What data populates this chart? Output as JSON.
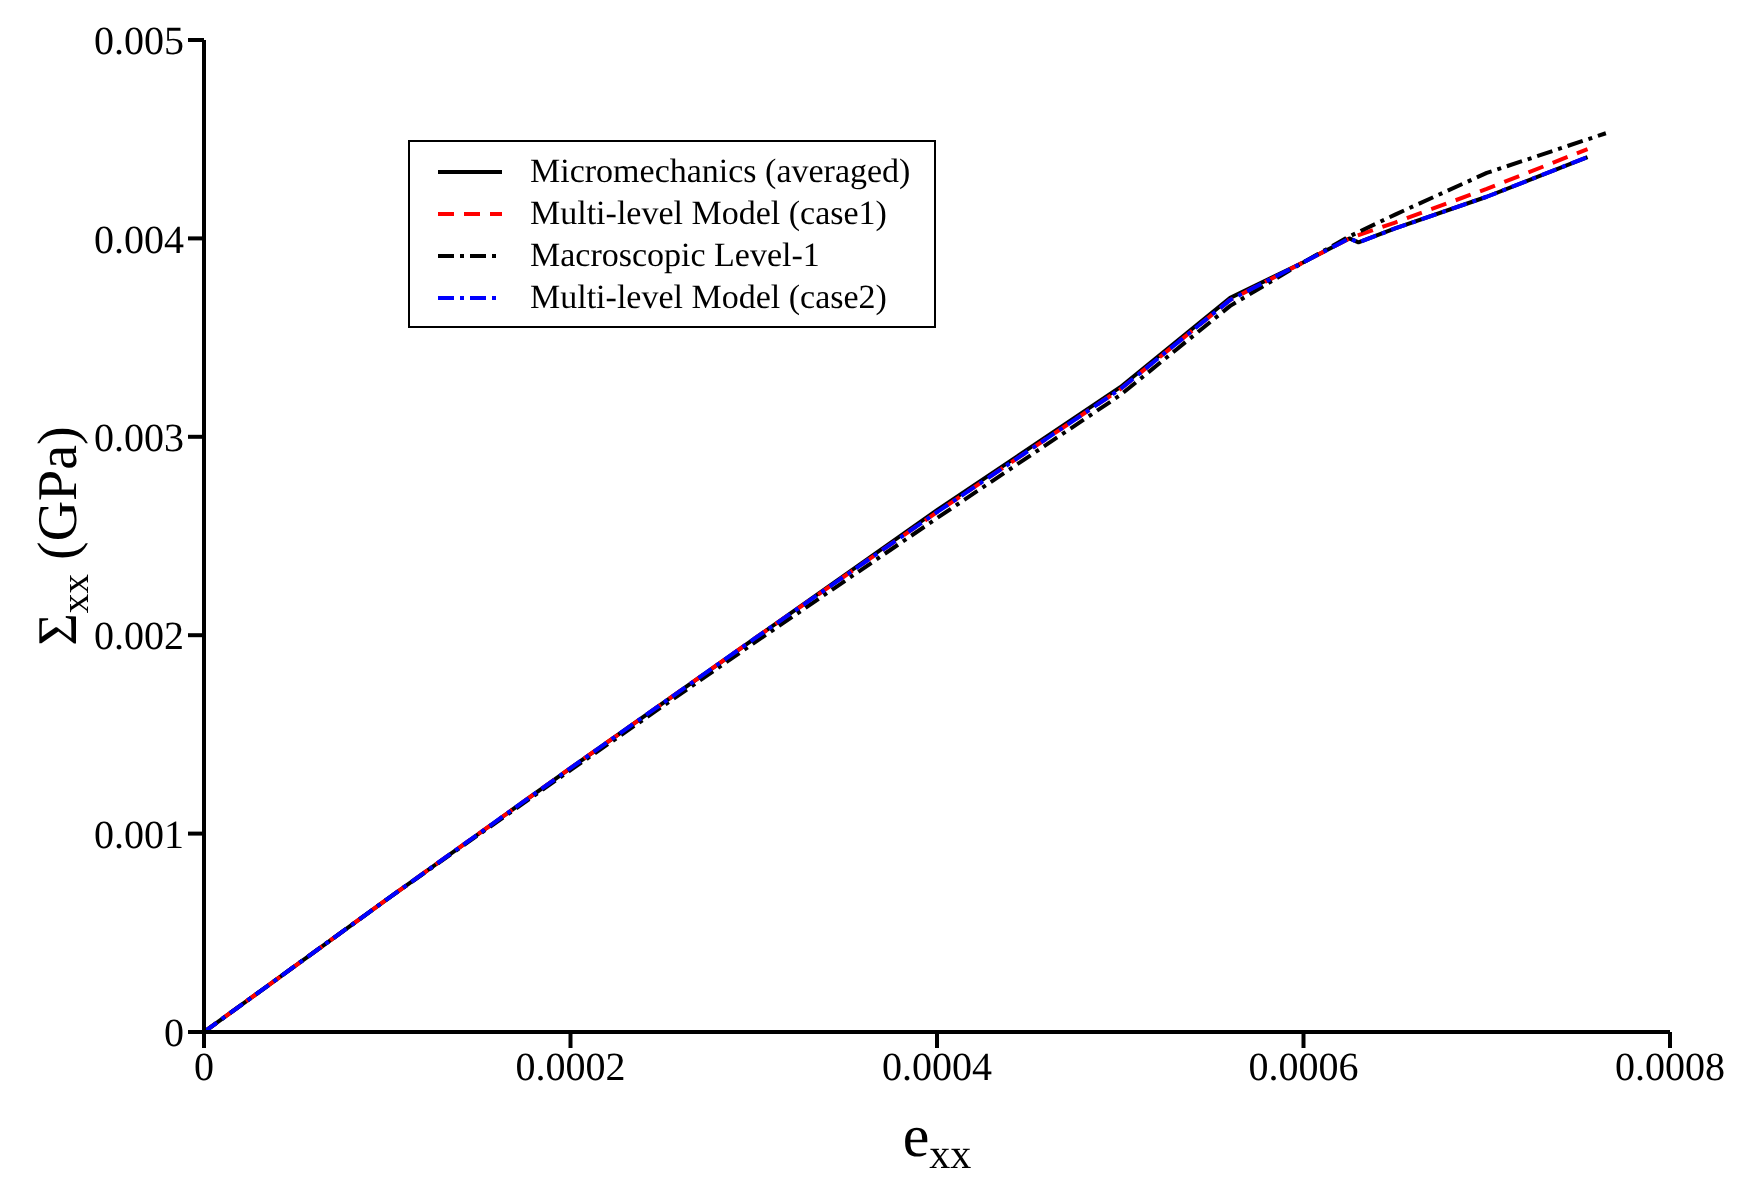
{
  "chart_data": {
    "type": "line",
    "xlabel": "e$_{xx}$",
    "ylabel": "Σ$_{xx}$  (GPa)",
    "xlim": [
      0,
      0.0008
    ],
    "ylim": [
      0,
      0.005
    ],
    "xticks": [
      0,
      0.0002,
      0.0004,
      0.0006,
      0.0008
    ],
    "yticks": [
      0,
      0.001,
      0.002,
      0.003,
      0.004,
      0.005
    ],
    "grid": false,
    "legend": "top left",
    "marker": "none",
    "series": [
      {
        "name": "Micromechanics (averaged)",
        "color": "#000000",
        "line_style": "solid",
        "x": [
          0,
          0.0001,
          0.0002,
          0.0003,
          0.0004,
          0.0005,
          0.00056,
          0.0006,
          0.000625,
          0.00063,
          0.00065,
          0.0007,
          0.000755
        ],
        "values": [
          0,
          0.00067,
          0.00133,
          0.00198,
          0.00263,
          0.00325,
          0.0037,
          0.00388,
          0.004,
          0.00398,
          0.00405,
          0.00421,
          0.00441
        ]
      },
      {
        "name": "Multi-level Model (case1)",
        "color": "#ff0000",
        "line_style": "dashed",
        "x": [
          0,
          0.0001,
          0.0002,
          0.0003,
          0.0004,
          0.0005,
          0.00056,
          0.0006,
          0.000625,
          0.00065,
          0.0007,
          0.000755
        ],
        "values": [
          0,
          0.00067,
          0.00133,
          0.00198,
          0.00262,
          0.00324,
          0.00369,
          0.00388,
          0.004,
          0.00408,
          0.00425,
          0.00445
        ]
      },
      {
        "name": "Macroscopic Level-1",
        "color": "#000000",
        "line_style": "dashdot",
        "x": [
          0,
          0.0001,
          0.0002,
          0.0003,
          0.0004,
          0.0005,
          0.00056,
          0.0006,
          0.000625,
          0.00065,
          0.0007,
          0.000765
        ],
        "values": [
          0,
          0.00067,
          0.00132,
          0.00196,
          0.00259,
          0.00321,
          0.00366,
          0.00388,
          0.00401,
          0.00412,
          0.00433,
          0.00453
        ]
      },
      {
        "name": "Multi-level Model (case2)",
        "color": "#0000ff",
        "line_style": "dashdot",
        "x": [
          0,
          0.0001,
          0.0002,
          0.0003,
          0.0004,
          0.0005,
          0.00056,
          0.0006,
          0.000625,
          0.00063,
          0.00065,
          0.0007,
          0.000755
        ],
        "values": [
          0,
          0.00067,
          0.00133,
          0.00198,
          0.00262,
          0.00324,
          0.00369,
          0.00388,
          0.004,
          0.00398,
          0.00405,
          0.00421,
          0.00441
        ]
      }
    ]
  }
}
